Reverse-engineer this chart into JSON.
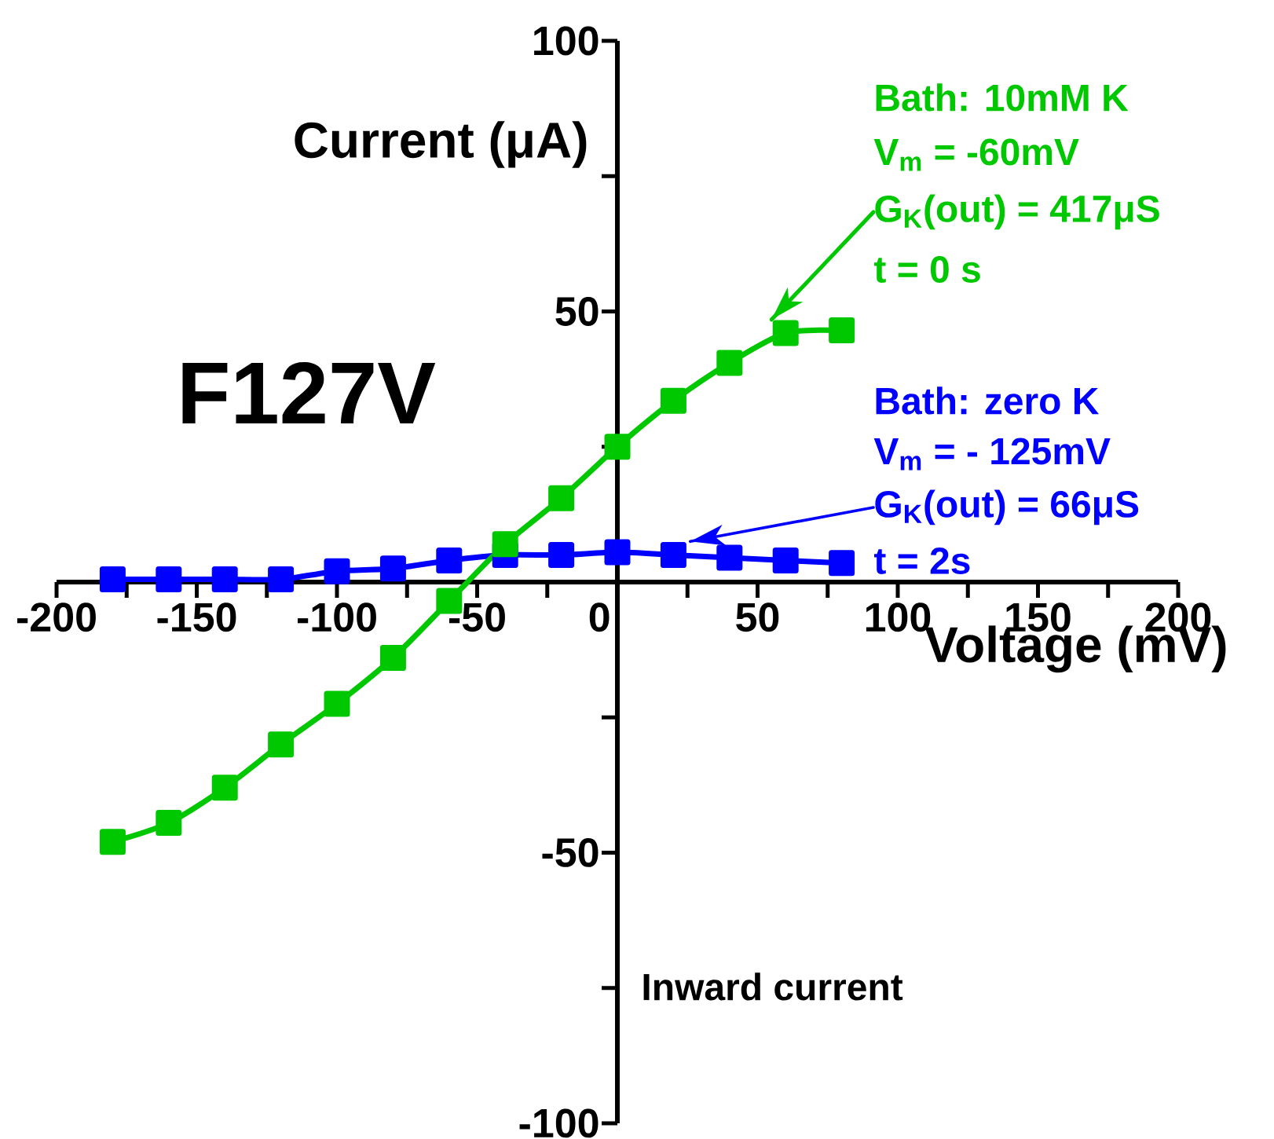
{
  "chart_data": {
    "type": "line",
    "title": "F127V",
    "xlabel": "Voltage (mV)",
    "ylabel": "Current (μA)",
    "x": [
      -180,
      -160,
      -140,
      -120,
      -100,
      -80,
      -60,
      -40,
      -20,
      0,
      20,
      40,
      60,
      80
    ],
    "series": [
      {
        "name": "Bath: 10mM K",
        "color": "#00c800",
        "values": [
          -48,
          -44.5,
          -38,
          -30,
          -22.5,
          -14,
          -3.5,
          7,
          15.5,
          25,
          33.5,
          40.5,
          46,
          46.5
        ]
      },
      {
        "name": "Bath: zero K",
        "color": "#0000ff",
        "values": [
          0.5,
          0.5,
          0.5,
          0.5,
          2,
          2.5,
          4,
          5,
          5,
          5.5,
          5,
          4.5,
          4,
          3.5
        ]
      }
    ],
    "xlim": [
      -200,
      200
    ],
    "ylim": [
      -100,
      100
    ],
    "xticks": [
      -200,
      -150,
      -100,
      -50,
      0,
      50,
      100,
      150,
      200
    ],
    "yticks": [
      -100,
      -50,
      {
        "value": 0,
        "label": null
      },
      50,
      100
    ],
    "marker": "square",
    "line_style": "solid",
    "annotations": [
      "V$_{m}$ = -60mV",
      {
        "text": "G$_{K}$(out) = 417μS",
        "x": 55,
        "y": 48.5
      },
      "t = 0 s",
      "V$_{m}$ = - 125mV",
      {
        "text": "G$_{K}$(out) = 66μS",
        "x": 26,
        "y": 7.5
      },
      "t = 2s",
      "Inward current"
    ]
  }
}
